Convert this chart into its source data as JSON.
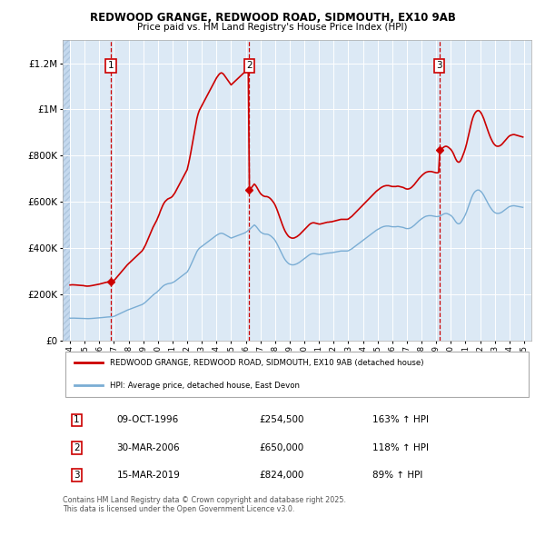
{
  "title1": "REDWOOD GRANGE, REDWOOD ROAD, SIDMOUTH, EX10 9AB",
  "title2": "Price paid vs. HM Land Registry's House Price Index (HPI)",
  "xlim": [
    1993.5,
    2025.5
  ],
  "ylim": [
    0,
    1300000
  ],
  "yticks": [
    0,
    200000,
    400000,
    600000,
    800000,
    1000000,
    1200000
  ],
  "ytick_labels": [
    "£0",
    "£200K",
    "£400K",
    "£600K",
    "£800K",
    "£1M",
    "£1.2M"
  ],
  "xticks": [
    1994,
    1995,
    1996,
    1997,
    1998,
    1999,
    2000,
    2001,
    2002,
    2003,
    2004,
    2005,
    2006,
    2007,
    2008,
    2009,
    2010,
    2011,
    2012,
    2013,
    2014,
    2015,
    2016,
    2017,
    2018,
    2019,
    2020,
    2021,
    2022,
    2023,
    2024,
    2025
  ],
  "background_color": "#dce9f5",
  "hatch_region_color": "#c5d9ee",
  "grid_color": "#ffffff",
  "sale_dates": [
    1996.78,
    2006.24,
    2019.21
  ],
  "sale_prices": [
    254500,
    650000,
    824000
  ],
  "sale_labels": [
    "1",
    "2",
    "3"
  ],
  "sale_color": "#cc0000",
  "hpi_color": "#7aadd4",
  "legend_entries": [
    "REDWOOD GRANGE, REDWOOD ROAD, SIDMOUTH, EX10 9AB (detached house)",
    "HPI: Average price, detached house, East Devon"
  ],
  "table_data": [
    [
      "1",
      "09-OCT-1996",
      "£254,500",
      "163% ↑ HPI"
    ],
    [
      "2",
      "30-MAR-2006",
      "£650,000",
      "118% ↑ HPI"
    ],
    [
      "3",
      "15-MAR-2019",
      "£824,000",
      "89% ↑ HPI"
    ]
  ],
  "footnote": "Contains HM Land Registry data © Crown copyright and database right 2025.\nThis data is licensed under the Open Government Licence v3.0.",
  "hpi_values_raw": [
    96000,
    96200,
    96400,
    96300,
    96100,
    96000,
    95800,
    95500,
    95300,
    95200,
    95100,
    95000,
    94500,
    94200,
    94000,
    94100,
    94300,
    94600,
    95000,
    95400,
    95800,
    96200,
    96600,
    97000,
    97500,
    98000,
    98600,
    99200,
    99800,
    100300,
    100800,
    101200,
    101600,
    101900,
    102200,
    102500,
    104000,
    106000,
    108500,
    111000,
    113500,
    116000,
    118500,
    121000,
    123500,
    126000,
    128500,
    131000,
    133000,
    135000,
    137000,
    139000,
    141000,
    143000,
    145000,
    147000,
    149000,
    151000,
    153000,
    155000,
    158000,
    162000,
    166000,
    171000,
    176000,
    181000,
    186000,
    191000,
    196000,
    200000,
    204000,
    208000,
    213000,
    218000,
    224000,
    229000,
    234000,
    238000,
    241000,
    243000,
    245000,
    246000,
    247000,
    248000,
    250000,
    253000,
    256000,
    260000,
    264000,
    268000,
    272000,
    276000,
    280000,
    284000,
    288000,
    292000,
    296000,
    305000,
    315000,
    326000,
    338000,
    350000,
    363000,
    375000,
    385000,
    393000,
    399000,
    403000,
    407000,
    411000,
    415000,
    419000,
    423000,
    427000,
    431000,
    435000,
    439000,
    443000,
    447000,
    451000,
    455000,
    458000,
    461000,
    463000,
    464000,
    463000,
    461000,
    458000,
    455000,
    452000,
    449000,
    446000,
    443000,
    445000,
    447000,
    449000,
    451000,
    453000,
    455000,
    457000,
    459000,
    461000,
    463000,
    465000,
    468000,
    472000,
    476000,
    480000,
    485000,
    490000,
    495000,
    500000,
    496000,
    490000,
    483000,
    476000,
    470000,
    466000,
    463000,
    461000,
    460000,
    460000,
    459000,
    457000,
    454000,
    450000,
    445000,
    440000,
    433000,
    424000,
    414000,
    403000,
    392000,
    381000,
    370000,
    360000,
    351000,
    344000,
    338000,
    333000,
    330000,
    328000,
    327000,
    327000,
    328000,
    330000,
    332000,
    335000,
    338000,
    342000,
    346000,
    350000,
    354000,
    358000,
    362000,
    366000,
    370000,
    373000,
    375000,
    376000,
    376000,
    375000,
    374000,
    373000,
    372000,
    372000,
    373000,
    374000,
    375000,
    376000,
    377000,
    378000,
    378000,
    379000,
    379000,
    380000,
    381000,
    382000,
    383000,
    384000,
    385000,
    386000,
    387000,
    387000,
    387000,
    387000,
    387000,
    387000,
    388000,
    391000,
    394000,
    397000,
    401000,
    405000,
    409000,
    413000,
    417000,
    421000,
    425000,
    429000,
    433000,
    437000,
    441000,
    445000,
    449000,
    453000,
    457000,
    461000,
    465000,
    469000,
    473000,
    477000,
    480000,
    483000,
    486000,
    489000,
    491000,
    493000,
    494000,
    495000,
    495000,
    495000,
    494000,
    493000,
    492000,
    492000,
    492000,
    492000,
    493000,
    493000,
    492000,
    491000,
    490000,
    489000,
    487000,
    485000,
    484000,
    484000,
    485000,
    487000,
    490000,
    494000,
    498000,
    503000,
    508000,
    513000,
    518000,
    522000,
    526000,
    530000,
    533000,
    536000,
    538000,
    539000,
    540000,
    540000,
    540000,
    539000,
    538000,
    537000,
    536000,
    536000,
    537000,
    539000,
    541000,
    544000,
    547000,
    549000,
    550000,
    549000,
    547000,
    544000,
    541000,
    536000,
    530000,
    522000,
    514000,
    508000,
    505000,
    505000,
    509000,
    516000,
    525000,
    534000,
    545000,
    558000,
    573000,
    589000,
    604000,
    618000,
    630000,
    639000,
    645000,
    649000,
    651000,
    651000,
    648000,
    643000,
    636000,
    628000,
    618000,
    608000,
    598000,
    588000,
    579000,
    571000,
    564000,
    558000,
    554000,
    551000,
    550000,
    550000,
    551000,
    553000,
    556000,
    560000,
    564000,
    568000,
    572000,
    576000,
    579000,
    581000,
    582000,
    583000,
    583000,
    582000,
    581000,
    580000,
    579000,
    578000,
    577000,
    576000
  ]
}
